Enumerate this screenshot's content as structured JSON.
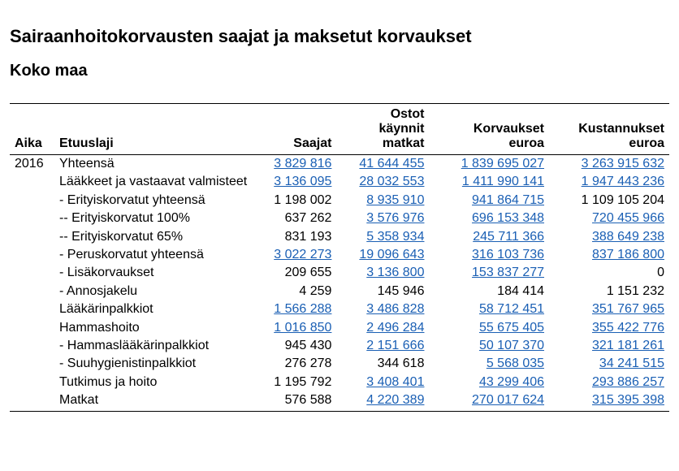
{
  "title": "Sairaanhoitokorvausten saajat ja maksetut korvaukset",
  "subtitle": "Koko maa",
  "table": {
    "header": {
      "aika": "Aika",
      "etuus": "Etuuslaji",
      "saajat": "Saajat",
      "ostot": "Ostot\nkäynnit\nmatkat",
      "korv": "Korvaukset\neuroa",
      "kust": "Kustannukset\neuroa"
    },
    "link_color": "#1a5fb4",
    "text_color": "#000000",
    "rows": [
      {
        "aika": "2016",
        "etuus": "Yhteensä",
        "saajat": {
          "v": "3 829 816",
          "link": true
        },
        "ostot": {
          "v": "41 644 455",
          "link": true
        },
        "korv": {
          "v": "1 839 695 027",
          "link": true
        },
        "kust": {
          "v": "3 263 915 632",
          "link": true
        }
      },
      {
        "aika": "",
        "etuus": "Lääkkeet ja vastaavat valmisteet",
        "saajat": {
          "v": "3 136 095",
          "link": true
        },
        "ostot": {
          "v": "28 032 553",
          "link": true
        },
        "korv": {
          "v": "1 411 990 141",
          "link": true
        },
        "kust": {
          "v": "1 947 443 236",
          "link": true
        }
      },
      {
        "aika": "",
        "etuus": "- Erityiskorvatut yhteensä",
        "saajat": {
          "v": "1 198 002",
          "link": false
        },
        "ostot": {
          "v": "8 935 910",
          "link": true
        },
        "korv": {
          "v": "941 864 715",
          "link": true
        },
        "kust": {
          "v": "1 109 105 204",
          "link": false
        }
      },
      {
        "aika": "",
        "etuus": "-- Erityiskorvatut 100%",
        "saajat": {
          "v": "637 262",
          "link": false
        },
        "ostot": {
          "v": "3 576 976",
          "link": true
        },
        "korv": {
          "v": "696 153 348",
          "link": true
        },
        "kust": {
          "v": "720 455 966",
          "link": true
        }
      },
      {
        "aika": "",
        "etuus": "-- Erityiskorvatut 65%",
        "saajat": {
          "v": "831 193",
          "link": false
        },
        "ostot": {
          "v": "5 358 934",
          "link": true
        },
        "korv": {
          "v": "245 711 366",
          "link": true
        },
        "kust": {
          "v": "388 649 238",
          "link": true
        }
      },
      {
        "aika": "",
        "etuus": "- Peruskorvatut yhteensä",
        "saajat": {
          "v": "3 022 273",
          "link": true
        },
        "ostot": {
          "v": "19 096 643",
          "link": true
        },
        "korv": {
          "v": "316 103 736",
          "link": true
        },
        "kust": {
          "v": "837 186 800",
          "link": true
        }
      },
      {
        "aika": "",
        "etuus": "- Lisäkorvaukset",
        "saajat": {
          "v": "209 655",
          "link": false
        },
        "ostot": {
          "v": "3 136 800",
          "link": true
        },
        "korv": {
          "v": "153 837 277",
          "link": true
        },
        "kust": {
          "v": "0",
          "link": false
        }
      },
      {
        "aika": "",
        "etuus": "- Annosjakelu",
        "saajat": {
          "v": "4 259",
          "link": false
        },
        "ostot": {
          "v": "145 946",
          "link": false
        },
        "korv": {
          "v": "184 414",
          "link": false
        },
        "kust": {
          "v": "1 151 232",
          "link": false
        }
      },
      {
        "aika": "",
        "etuus": "Lääkärinpalkkiot",
        "saajat": {
          "v": "1 566 288",
          "link": true
        },
        "ostot": {
          "v": "3 486 828",
          "link": true
        },
        "korv": {
          "v": "58 712 451",
          "link": true
        },
        "kust": {
          "v": "351 767 965",
          "link": true
        }
      },
      {
        "aika": "",
        "etuus": "Hammashoito",
        "saajat": {
          "v": "1 016 850",
          "link": true
        },
        "ostot": {
          "v": "2 496 284",
          "link": true
        },
        "korv": {
          "v": "55 675 405",
          "link": true
        },
        "kust": {
          "v": "355 422 776",
          "link": true
        }
      },
      {
        "aika": "",
        "etuus": "- Hammaslääkärinpalkkiot",
        "saajat": {
          "v": "945 430",
          "link": false
        },
        "ostot": {
          "v": "2 151 666",
          "link": true
        },
        "korv": {
          "v": "50 107 370",
          "link": true
        },
        "kust": {
          "v": "321 181 261",
          "link": true
        }
      },
      {
        "aika": "",
        "etuus": "- Suuhygienistinpalkkiot",
        "saajat": {
          "v": "276 278",
          "link": false
        },
        "ostot": {
          "v": "344 618",
          "link": false
        },
        "korv": {
          "v": "5 568 035",
          "link": true
        },
        "kust": {
          "v": "34 241 515",
          "link": true
        }
      },
      {
        "aika": "",
        "etuus": "Tutkimus ja hoito",
        "saajat": {
          "v": "1 195 792",
          "link": false
        },
        "ostot": {
          "v": "3 408 401",
          "link": true
        },
        "korv": {
          "v": "43 299 406",
          "link": true
        },
        "kust": {
          "v": "293 886 257",
          "link": true
        }
      },
      {
        "aika": "",
        "etuus": "Matkat",
        "saajat": {
          "v": "576 588",
          "link": false
        },
        "ostot": {
          "v": "4 220 389",
          "link": true
        },
        "korv": {
          "v": "270 017 624",
          "link": true
        },
        "kust": {
          "v": "315 395 398",
          "link": true
        }
      }
    ]
  }
}
